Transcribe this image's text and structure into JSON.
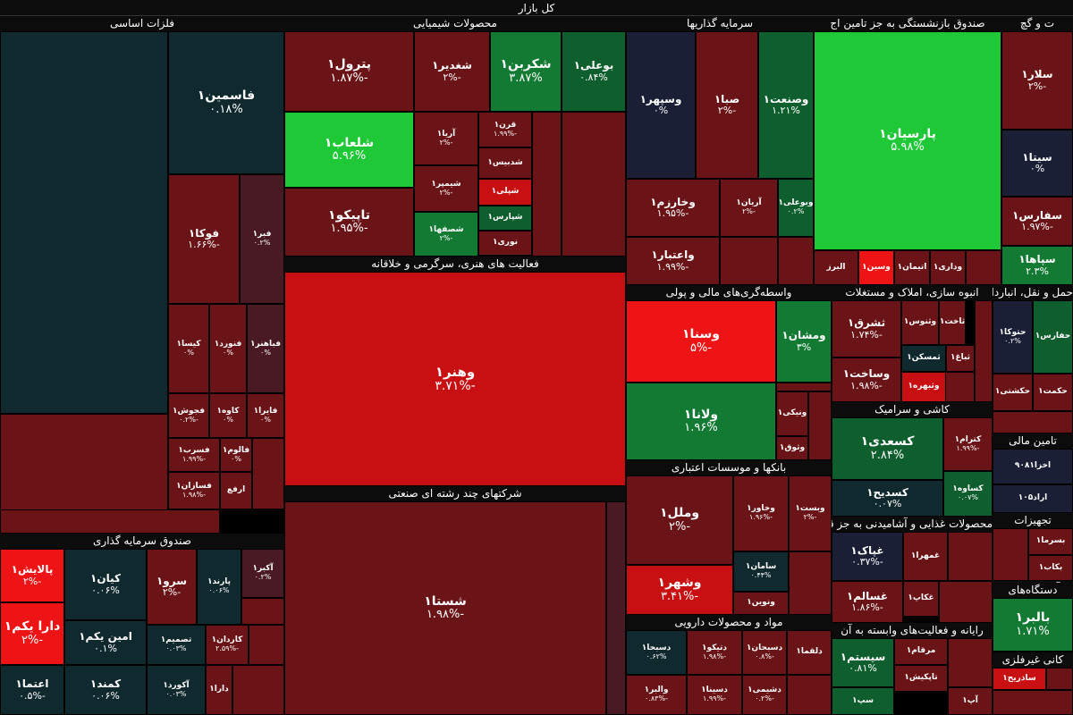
{
  "title": "کل بازار",
  "colors": {
    "dark_teal": "#10292e",
    "dark_navy": "#1a1f35",
    "dark_red": "#6a1417",
    "mid_red": "#7a1a1e",
    "bright_red": "#c80f12",
    "vivid_red": "#ee1416",
    "dark_green": "#0f5f2e",
    "mid_green": "#127a33",
    "bright_green": "#1ec837",
    "maroon": "#4a1a24"
  },
  "sectors": [
    {
      "label": "فلزات اساسی"
    },
    {
      "label": "محصولات شیمیایی"
    },
    {
      "label": "سرمایه گذاریها"
    },
    {
      "label": "صندوق بازنشستگی به جز تامین اج"
    },
    {
      "label": "ت و گچ"
    },
    {
      "label": "فعالیت های هنری، سرگرمی و خلاقانه"
    },
    {
      "label": "شرکتهای چند رشته ای صنعتی"
    },
    {
      "label": "واسطه‌گری‌های مالی و پولی"
    },
    {
      "label": "بانکها و موسسات اعتباری"
    },
    {
      "label": "مواد و محصولات دارویی"
    },
    {
      "label": "صندوق سرمایه گذاری"
    },
    {
      "label": "انبوه سازی، املاک و مستغلات"
    },
    {
      "label": "حمل و نقل، انبارداری و ارتباطات"
    },
    {
      "label": "کاشی و سرامیک"
    },
    {
      "label": "محصولات غذایی و آشامیدنی به جز قند"
    },
    {
      "label": "رایانه و فعالیت‌های وابسته به آن"
    },
    {
      "label": "فرآورده‌های نفتی"
    },
    {
      "label": "تامین مالی"
    },
    {
      "label": "تجهیزات"
    },
    {
      "label": "دستگاه‌های"
    },
    {
      "label": "کانی غیرفلزی"
    }
  ],
  "tiles": [
    {
      "sym": "فاسمین۱",
      "chg": "۰.۱۸%"
    },
    {
      "sym": "فوکا۱",
      "chg": "-۱.۶۶%"
    },
    {
      "sym": "فبر۱",
      "chg": "۰.۲%"
    },
    {
      "sym": "کیسا۱",
      "chg": "۰%"
    },
    {
      "sym": "فنورد۱",
      "chg": "۰%"
    },
    {
      "sym": "فباهنر۱",
      "chg": "۰%"
    },
    {
      "sym": "فجوش۱",
      "chg": "-۰.۲%"
    },
    {
      "sym": "کاوه۱",
      "chg": "۰%"
    },
    {
      "sym": "فایرا۱",
      "chg": "۰%"
    },
    {
      "sym": "فسرب۱",
      "chg": "-۱.۹۹%"
    },
    {
      "sym": "فالوم۱",
      "chg": "۰%"
    },
    {
      "sym": "فسازان۱",
      "chg": "-۱.۹۸%"
    },
    {
      "sym": "ارفع",
      "chg": ""
    },
    {
      "sym": "پترول۱",
      "chg": "-۱.۸۷%"
    },
    {
      "sym": "شغدیر۱",
      "chg": "-۲%"
    },
    {
      "sym": "شکربن۱",
      "chg": "۳.۸۷%"
    },
    {
      "sym": "بوعلی۱",
      "chg": "۰.۸۴%"
    },
    {
      "sym": "شلعاب۱",
      "chg": "۵.۹۶%"
    },
    {
      "sym": "آریا۱",
      "chg": "-۲%"
    },
    {
      "sym": "قرن۱",
      "chg": "-۱.۹۹%"
    },
    {
      "sym": "شدبیس۱",
      "chg": ""
    },
    {
      "sym": "شپلی۱",
      "chg": ""
    },
    {
      "sym": "شپارس۱",
      "chg": ""
    },
    {
      "sym": "نوری۱",
      "chg": ""
    },
    {
      "sym": "شیمپر۱",
      "chg": "-۲%"
    },
    {
      "sym": "تاپیکو۱",
      "chg": "-۱.۹۵%"
    },
    {
      "sym": "شصفها۱",
      "chg": "-۲%"
    },
    {
      "sym": "وسپهر۱",
      "chg": "۰%"
    },
    {
      "sym": "صبا۱",
      "chg": "-۲%"
    },
    {
      "sym": "وصنعت۱",
      "chg": "۱.۲۱%"
    },
    {
      "sym": "پارسیان۱",
      "chg": "۵.۹۸%"
    },
    {
      "sym": "سلار۱",
      "chg": "-۲%"
    },
    {
      "sym": "سیتا۱",
      "chg": "۰%"
    },
    {
      "sym": "سفارس۱",
      "chg": "-۱.۹۷%"
    },
    {
      "sym": "سپاها۱",
      "chg": "۲.۳%"
    },
    {
      "sym": "وخارزم۱",
      "chg": "-۱.۹۵%"
    },
    {
      "sym": "آریان۱",
      "chg": "-۲%"
    },
    {
      "sym": "وبوعلی۱",
      "chg": "۰.۲%"
    },
    {
      "sym": "واعتبار۱",
      "chg": "-۱.۹۹%"
    },
    {
      "sym": "البرز",
      "chg": ""
    },
    {
      "sym": "وسین۱",
      "chg": ""
    },
    {
      "sym": "اتیمان۱",
      "chg": ""
    },
    {
      "sym": "وداری۱",
      "chg": ""
    },
    {
      "sym": "وهنر۱",
      "chg": "-۳.۷۱%"
    },
    {
      "sym": "شستا۱",
      "chg": "-۱.۹۸%"
    },
    {
      "sym": "وسنا۱",
      "chg": "-۵%"
    },
    {
      "sym": "ومشان۱",
      "chg": "۳%"
    },
    {
      "sym": "ولانا۱",
      "chg": "۱.۹۶%"
    },
    {
      "sym": "ونیکی۱",
      "chg": ""
    },
    {
      "sym": "وثوق۱",
      "chg": ""
    },
    {
      "sym": "وملل۱",
      "chg": "-۲%"
    },
    {
      "sym": "وخاور۱",
      "chg": "-۱.۹۶%"
    },
    {
      "sym": "وبست۱",
      "chg": "-۲%"
    },
    {
      "sym": "سامان۱",
      "chg": "۰.۴۴%"
    },
    {
      "sym": "ونوین۱",
      "chg": ""
    },
    {
      "sym": "وشهر۱",
      "chg": "-۳.۴۱%"
    },
    {
      "sym": "دسبحا۱",
      "chg": "۰.۶۲%"
    },
    {
      "sym": "دتیکو۱",
      "chg": "-۱.۹۸%"
    },
    {
      "sym": "دسبحان۱",
      "chg": "-۰.۸%"
    },
    {
      "sym": "دلقما۱",
      "chg": ""
    },
    {
      "sym": "والبر۱",
      "chg": "-۰.۸۳%"
    },
    {
      "sym": "دسینا۱",
      "chg": "-۱.۹۹%"
    },
    {
      "sym": "دشیمی۱",
      "chg": "-۰.۲%"
    },
    {
      "sym": "پالایش۱",
      "chg": "-۲%"
    },
    {
      "sym": "دارا یکم۱",
      "chg": "-۲%"
    },
    {
      "sym": "اعتما۱",
      "chg": "-۰.۵%"
    },
    {
      "sym": "کیان۱",
      "chg": "۰.۰۶%"
    },
    {
      "sym": "امین یکم۱",
      "chg": "۰.۱%"
    },
    {
      "sym": "کمند۱",
      "chg": "۰.۰۶%"
    },
    {
      "sym": "سرو۱",
      "chg": "-۲%"
    },
    {
      "sym": "پارند۱",
      "chg": "۰.۰۶%"
    },
    {
      "sym": "آکبر۱",
      "chg": "۰.۲%"
    },
    {
      "sym": "تصمیم۱",
      "chg": "۰.۰۳%"
    },
    {
      "sym": "کاردان۱",
      "chg": "-۲.۵۹%"
    },
    {
      "sym": "آکورد۱",
      "chg": "۰.۰۳%"
    },
    {
      "sym": "دارا۱",
      "chg": ""
    },
    {
      "sym": "ثشرق۱",
      "chg": "-۱.۷۴%"
    },
    {
      "sym": "وثنوس۱",
      "chg": ""
    },
    {
      "sym": "ثاخت۱",
      "chg": ""
    },
    {
      "sym": "ثمسکن۱",
      "chg": ""
    },
    {
      "sym": "ثباغ۱",
      "chg": ""
    },
    {
      "sym": "وساخت۱",
      "chg": "-۱.۹۸%"
    },
    {
      "sym": "وثبهره۱",
      "chg": ""
    },
    {
      "sym": "حتوکا۱",
      "chg": "۰.۲%"
    },
    {
      "sym": "حفارس۱",
      "chg": ""
    },
    {
      "sym": "حکشتی۱",
      "chg": ""
    },
    {
      "sym": "حکمت۱",
      "chg": ""
    },
    {
      "sym": "کسعدی۱",
      "chg": "۲.۸۴%"
    },
    {
      "sym": "کترام۱",
      "chg": "-۱.۹۹%"
    },
    {
      "sym": "کسدیح۱",
      "chg": "۰.۰۷%"
    },
    {
      "sym": "کساوه۱",
      "chg": "۰.۰۷%"
    },
    {
      "sym": "اخزا۹۰۸۱",
      "chg": ""
    },
    {
      "sym": "اراد۱۰۵",
      "chg": ""
    },
    {
      "sym": "غپاک۱",
      "chg": "-۰.۳۷%"
    },
    {
      "sym": "غمهرا۱",
      "chg": ""
    },
    {
      "sym": "غسالم۱",
      "chg": "-۱.۸۶%"
    },
    {
      "sym": "غکاپ۱",
      "chg": ""
    },
    {
      "sym": "بسرما۱",
      "chg": ""
    },
    {
      "sym": "بکاب۱",
      "chg": ""
    },
    {
      "sym": "سیستم۱",
      "chg": "۰.۸۱%"
    },
    {
      "sym": "مرقام۱",
      "chg": ""
    },
    {
      "sym": "تاپکیش۱",
      "chg": ""
    },
    {
      "sym": "سپ۱",
      "chg": ""
    },
    {
      "sym": "آپ۱",
      "chg": ""
    },
    {
      "sym": "بالبر۱",
      "chg": "۱.۷۱%"
    },
    {
      "sym": "ساذریح۱",
      "chg": ""
    }
  ]
}
